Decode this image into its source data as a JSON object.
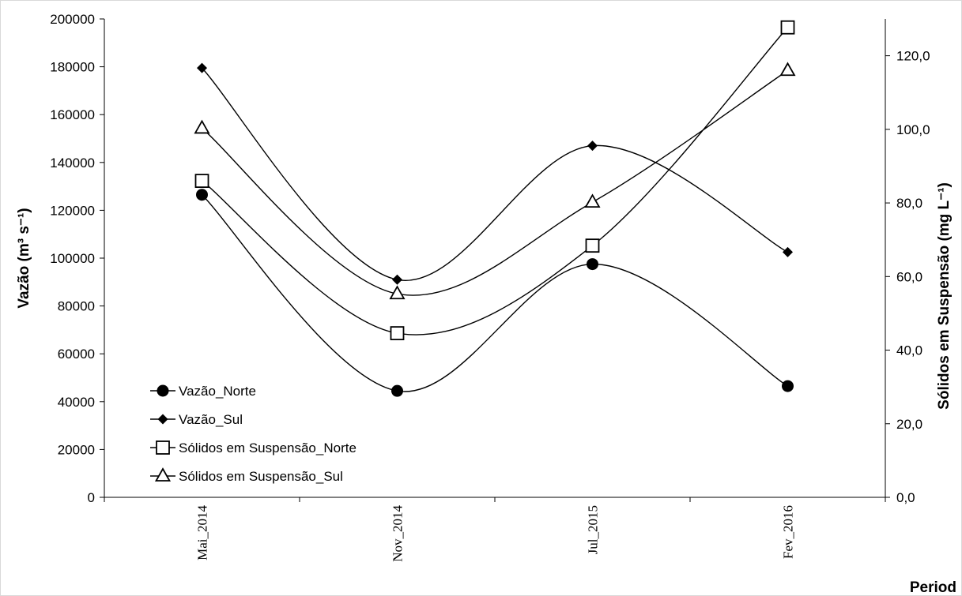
{
  "chart_data": {
    "type": "line",
    "smooth": true,
    "categories": [
      "Mai_2014",
      "Nov_2014",
      "Jul_2015",
      "Fev_2016"
    ],
    "xlabel": "Period",
    "ylabel_left": "Vazão (m³ s⁻¹)",
    "ylabel_right": "Sólidos em Suspensão (mg L⁻¹)",
    "ylim_left": [
      0,
      200000
    ],
    "ylim_right": [
      0,
      130
    ],
    "yticks_left": [
      "0",
      "20000",
      "40000",
      "60000",
      "80000",
      "100000",
      "120000",
      "140000",
      "160000",
      "180000",
      "200000"
    ],
    "yticks_right": [
      "0,0",
      "20,0",
      "40,0",
      "60,0",
      "80,0",
      "100,0",
      "120,0"
    ],
    "grid": false,
    "legend_position": "bottom-left",
    "series": [
      {
        "name": "Vazão_Norte",
        "axis": "left",
        "marker": "circle",
        "values": [
          126500,
          44500,
          97500,
          46500
        ]
      },
      {
        "name": "Vazão_Sul",
        "axis": "left",
        "marker": "diamond",
        "values": [
          179500,
          91000,
          147000,
          102500
        ]
      },
      {
        "name": "Sólidos em Suspensão_Norte",
        "axis": "right",
        "marker": "square-open",
        "values": [
          86.0,
          44.6,
          68.4,
          127.7
        ]
      },
      {
        "name": "Sólidos em Suspensão_Sul",
        "axis": "right",
        "marker": "triangle-open",
        "values": [
          100.3,
          55.3,
          80.2,
          116.0
        ]
      }
    ]
  }
}
